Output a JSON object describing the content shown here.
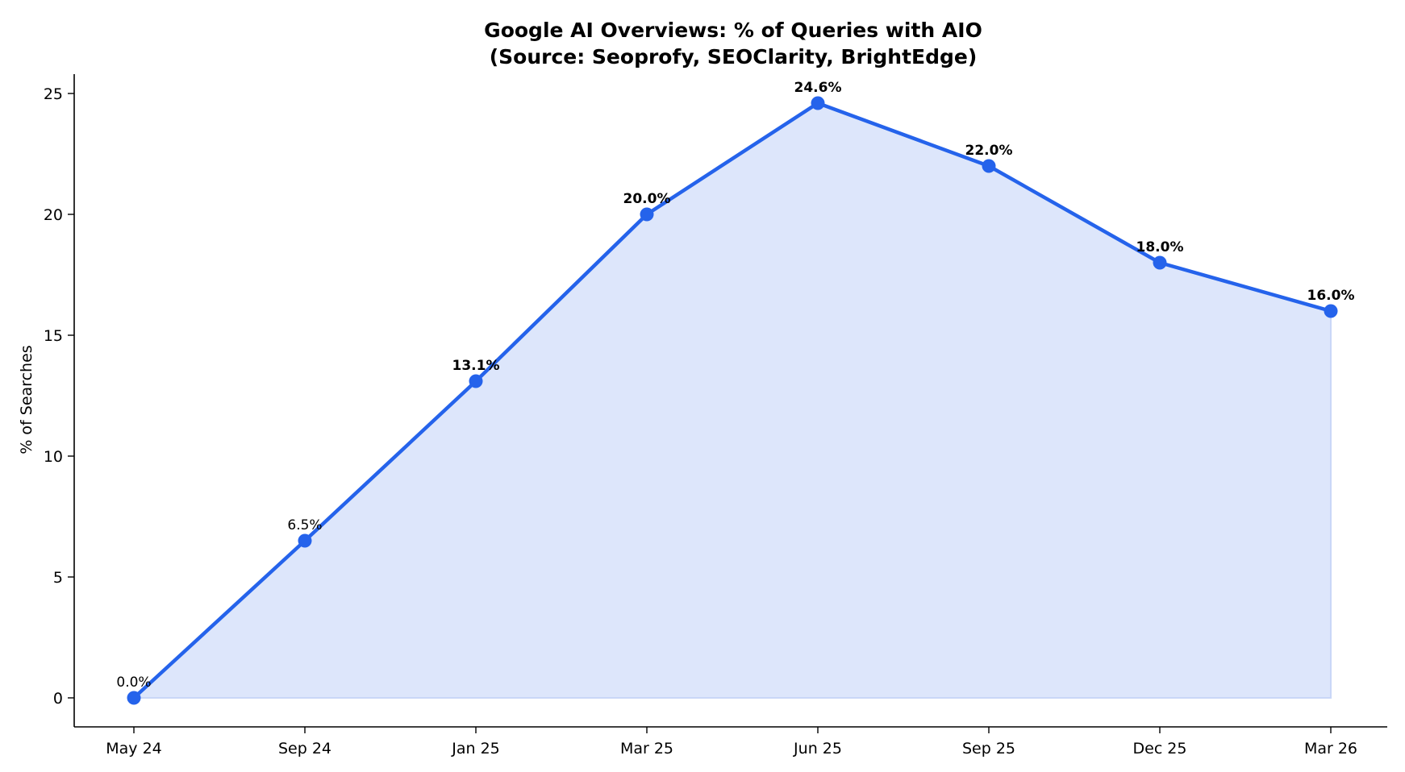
{
  "chart_data": {
    "type": "area",
    "title": "Google AI Overviews: % of Queries with AIO",
    "subtitle": "(Source: Seoprofy, SEOClarity, BrightEdge)",
    "xlabel": "",
    "ylabel": "% of Searches",
    "categories": [
      "May 24",
      "Sep 24",
      "Jan 25",
      "Mar 25",
      "Jun 25",
      "Sep 25",
      "Dec 25",
      "Mar 26"
    ],
    "series": [
      {
        "values": [
          0.0,
          6.5,
          13.1,
          20.0,
          24.6,
          22.0,
          18.0,
          16.0
        ],
        "data_labels": [
          "0.0%",
          "6.5%",
          "13.1%",
          "20.0%",
          "24.6%",
          "22.0%",
          "18.0%",
          "16.0%"
        ],
        "bold_labels": [
          false,
          false,
          true,
          true,
          true,
          true,
          true,
          true
        ],
        "color": "#2563eb",
        "fill_color": "#dde6fb"
      }
    ],
    "ylim": [
      -1.2,
      25.8
    ],
    "yticks": [
      0,
      5,
      10,
      15,
      20,
      25
    ],
    "grid": false,
    "legend": "none"
  }
}
